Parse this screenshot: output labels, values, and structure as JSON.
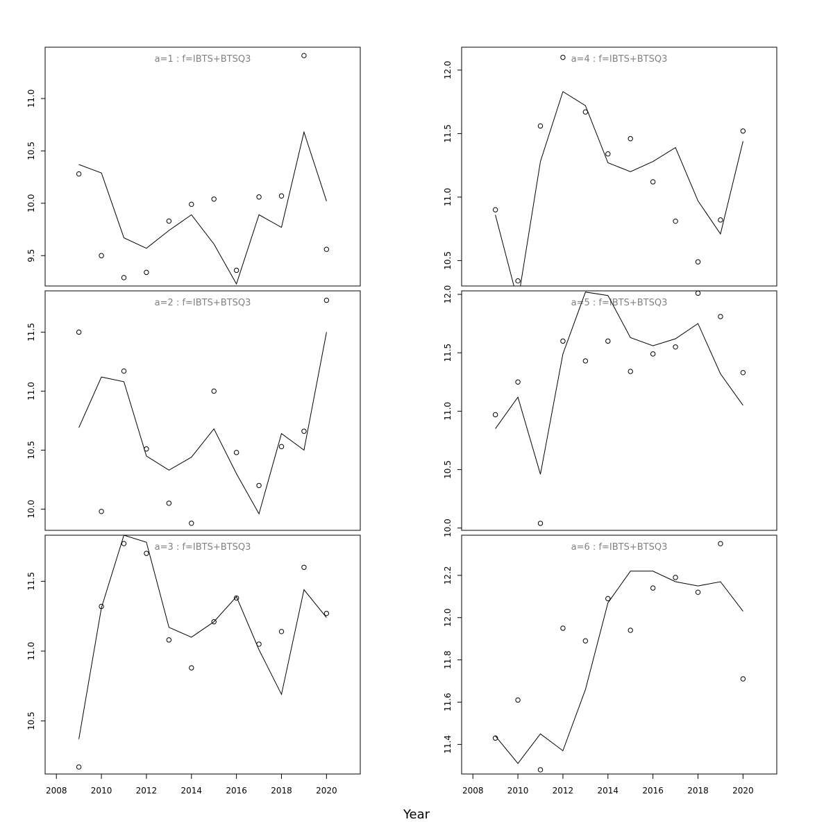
{
  "figure": {
    "xlabel": "Year",
    "x_ticks": [
      2008,
      2010,
      2012,
      2014,
      2016,
      2018,
      2020
    ],
    "xlim": [
      2007.5,
      2021.5
    ],
    "colors": {
      "line": "#000000",
      "points": "#000000",
      "panel_title": "#808080",
      "frame": "#000000"
    }
  },
  "chart_data": [
    {
      "type": "line",
      "title": "a=1 : f=IBTS+BTSQ3",
      "ylim": [
        9.21,
        11.49
      ],
      "y_ticks": [
        "9.5",
        "10.0",
        "10.5",
        "11.0"
      ],
      "x": [
        2009,
        2010,
        2011,
        2012,
        2013,
        2014,
        2015,
        2016,
        2017,
        2018,
        2019,
        2020
      ],
      "series": [
        {
          "kind": "line",
          "values": [
            10.37,
            10.29,
            9.67,
            9.57,
            9.74,
            9.89,
            9.61,
            9.23,
            9.89,
            9.77,
            10.68,
            10.02
          ]
        },
        {
          "kind": "points",
          "values": [
            10.28,
            9.5,
            9.29,
            9.34,
            9.83,
            9.99,
            10.04,
            9.36,
            10.06,
            10.07,
            11.41,
            9.56
          ]
        }
      ]
    },
    {
      "type": "line",
      "title": "a=4 : f=IBTS+BTSQ3",
      "ylim": [
        10.3,
        12.18
      ],
      "y_ticks": [
        "10.5",
        "11.0",
        "11.5",
        "12.0"
      ],
      "x": [
        2009,
        2010,
        2011,
        2012,
        2013,
        2014,
        2015,
        2016,
        2017,
        2018,
        2019,
        2020
      ],
      "series": [
        {
          "kind": "line",
          "values": [
            10.86,
            10.18,
            11.28,
            11.83,
            11.72,
            11.27,
            11.2,
            11.28,
            11.39,
            10.97,
            10.71,
            11.44
          ]
        },
        {
          "kind": "points",
          "values": [
            10.9,
            10.34,
            11.56,
            12.1,
            11.67,
            11.34,
            11.46,
            11.12,
            10.81,
            10.49,
            10.82,
            11.52
          ]
        }
      ]
    },
    {
      "type": "line",
      "title": "a=2 : f=IBTS+BTSQ3",
      "ylim": [
        9.82,
        11.85
      ],
      "y_ticks": [
        "10.0",
        "10.5",
        "11.0",
        "11.5"
      ],
      "x": [
        2009,
        2010,
        2011,
        2012,
        2013,
        2014,
        2015,
        2016,
        2017,
        2018,
        2019,
        2020
      ],
      "series": [
        {
          "kind": "line",
          "values": [
            10.69,
            11.12,
            11.08,
            10.45,
            10.33,
            10.44,
            10.68,
            10.3,
            9.96,
            10.64,
            10.5,
            11.5
          ]
        },
        {
          "kind": "points",
          "values": [
            11.5,
            9.98,
            11.17,
            10.51,
            10.05,
            9.88,
            11.0,
            10.48,
            10.2,
            10.53,
            10.66,
            11.77
          ]
        }
      ]
    },
    {
      "type": "line",
      "title": "a=5 : f=IBTS+BTSQ3",
      "ylim": [
        9.98,
        12.03
      ],
      "y_ticks": [
        "10.0",
        "10.5",
        "11.0",
        "11.5",
        "12.0"
      ],
      "x": [
        2009,
        2010,
        2011,
        2012,
        2013,
        2014,
        2015,
        2016,
        2017,
        2018,
        2019,
        2020
      ],
      "series": [
        {
          "kind": "line",
          "values": [
            10.85,
            11.12,
            10.46,
            11.49,
            12.02,
            11.99,
            11.63,
            11.56,
            11.62,
            11.75,
            11.32,
            11.05
          ]
        },
        {
          "kind": "points",
          "values": [
            10.97,
            11.25,
            10.04,
            11.6,
            11.43,
            11.6,
            11.34,
            11.49,
            11.55,
            12.01,
            11.81,
            11.33
          ]
        }
      ]
    },
    {
      "type": "line",
      "title": "a=3 : f=IBTS+BTSQ3",
      "ylim": [
        10.12,
        11.83
      ],
      "y_ticks": [
        "10.5",
        "11.0",
        "11.5"
      ],
      "x": [
        2009,
        2010,
        2011,
        2012,
        2013,
        2014,
        2015,
        2016,
        2017,
        2018,
        2019,
        2020
      ],
      "series": [
        {
          "kind": "line",
          "values": [
            10.37,
            11.31,
            11.83,
            11.78,
            11.17,
            11.1,
            11.21,
            11.39,
            11.01,
            10.69,
            11.44,
            11.24
          ]
        },
        {
          "kind": "points",
          "values": [
            10.17,
            11.32,
            11.77,
            11.7,
            11.08,
            10.88,
            11.21,
            11.38,
            11.05,
            11.14,
            11.6,
            11.27
          ]
        }
      ]
    },
    {
      "type": "line",
      "title": "a=6 : f=IBTS+BTSQ3",
      "ylim": [
        11.26,
        12.39
      ],
      "y_ticks": [
        "11.4",
        "11.6",
        "11.8",
        "12.0",
        "12.2"
      ],
      "x": [
        2009,
        2010,
        2011,
        2012,
        2013,
        2014,
        2015,
        2016,
        2017,
        2018,
        2019,
        2020
      ],
      "series": [
        {
          "kind": "line",
          "values": [
            11.44,
            11.31,
            11.45,
            11.37,
            11.66,
            12.07,
            12.22,
            12.22,
            12.17,
            12.15,
            12.17,
            12.03
          ]
        },
        {
          "kind": "points",
          "values": [
            11.43,
            11.61,
            11.28,
            11.95,
            11.89,
            12.09,
            11.94,
            12.14,
            12.19,
            12.12,
            12.35,
            11.71
          ]
        }
      ]
    }
  ]
}
